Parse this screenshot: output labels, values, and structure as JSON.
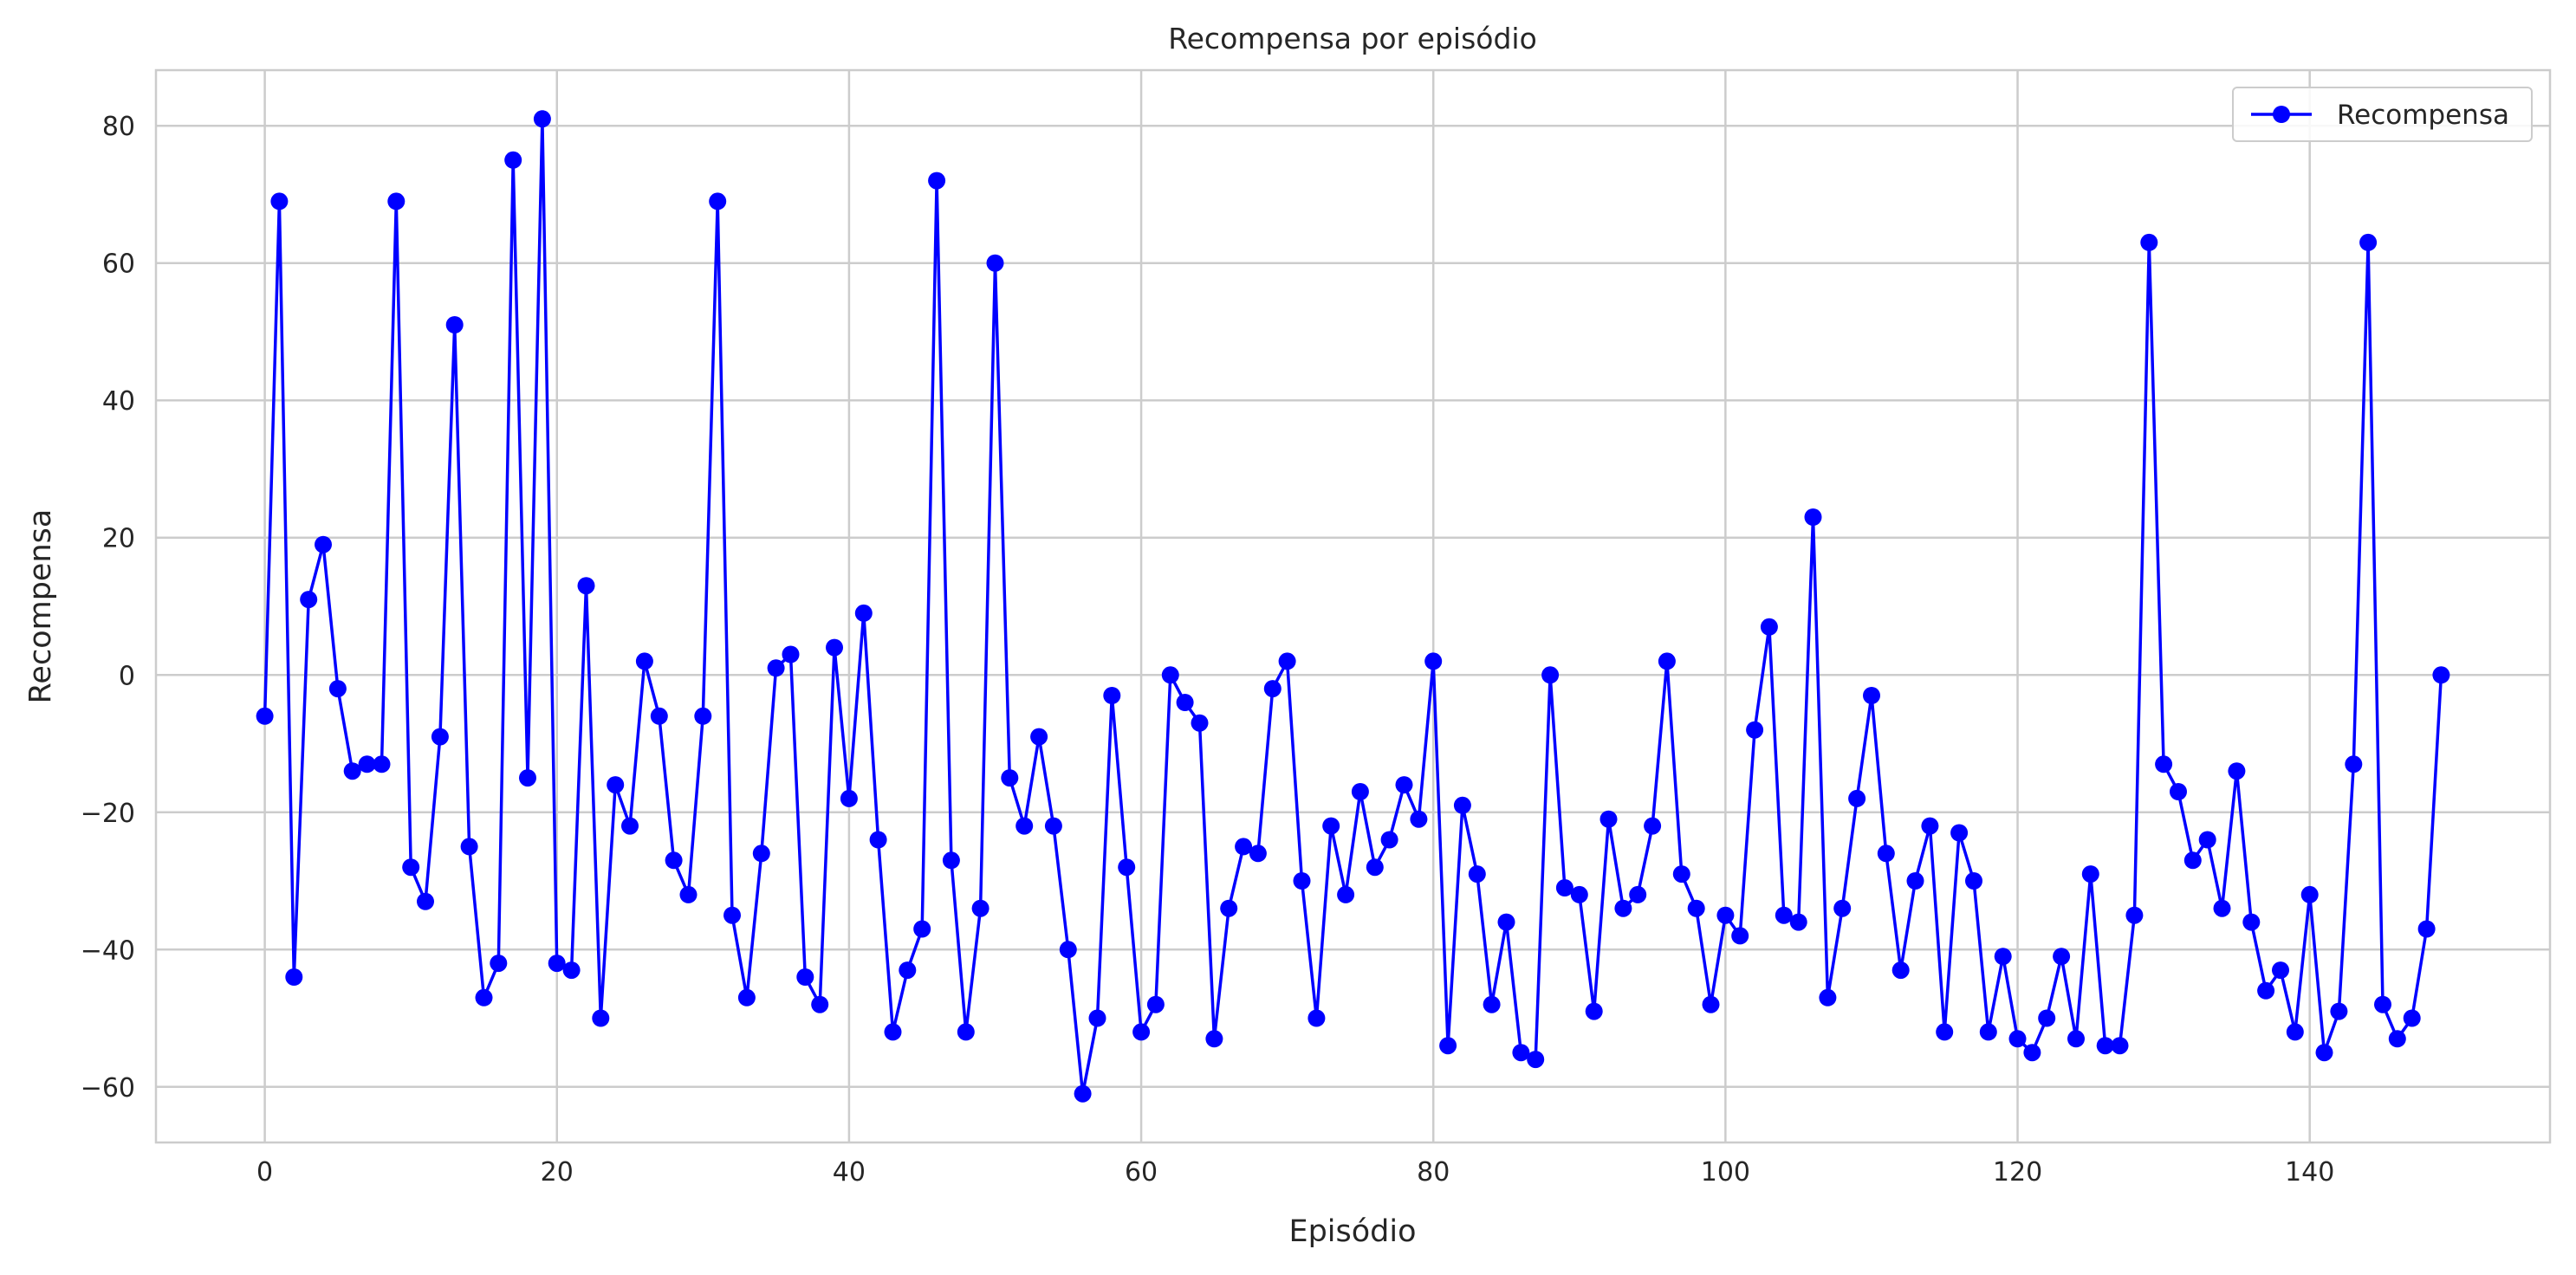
{
  "chart_data": {
    "type": "line",
    "title": "Recompensa por episódio",
    "xlabel": "Episódio",
    "ylabel": "Recompensa",
    "xlim": [
      -7.45,
      156.45
    ],
    "ylim": [
      -68.1,
      88.1
    ],
    "xticks": [
      0,
      20,
      40,
      60,
      80,
      100,
      120,
      140
    ],
    "xtick_labels": [
      "0",
      "20",
      "40",
      "60",
      "80",
      "100",
      "120",
      "140"
    ],
    "yticks": [
      -60,
      -40,
      -20,
      0,
      20,
      40,
      60,
      80
    ],
    "ytick_labels": [
      "−60",
      "−40",
      "−20",
      "0",
      "20",
      "40",
      "60",
      "80"
    ],
    "grid": true,
    "legend_position": "top-right",
    "series": [
      {
        "name": "Recompensa",
        "color": "#0000ff",
        "marker": "circle",
        "x": [
          0,
          1,
          2,
          3,
          4,
          5,
          6,
          7,
          8,
          9,
          10,
          11,
          12,
          13,
          14,
          15,
          16,
          17,
          18,
          19,
          20,
          21,
          22,
          23,
          24,
          25,
          26,
          27,
          28,
          29,
          30,
          31,
          32,
          33,
          34,
          35,
          36,
          37,
          38,
          39,
          40,
          41,
          42,
          43,
          44,
          45,
          46,
          47,
          48,
          49,
          50,
          51,
          52,
          53,
          54,
          55,
          56,
          57,
          58,
          59,
          60,
          61,
          62,
          63,
          64,
          65,
          66,
          67,
          68,
          69,
          70,
          71,
          72,
          73,
          74,
          75,
          76,
          77,
          78,
          79,
          80,
          81,
          82,
          83,
          84,
          85,
          86,
          87,
          88,
          89,
          90,
          91,
          92,
          93,
          94,
          95,
          96,
          97,
          98,
          99,
          100,
          101,
          102,
          103,
          104,
          105,
          106,
          107,
          108,
          109,
          110,
          111,
          112,
          113,
          114,
          115,
          116,
          117,
          118,
          119,
          120,
          121,
          122,
          123,
          124,
          125,
          126,
          127,
          128,
          129,
          130,
          131,
          132,
          133,
          134,
          135,
          136,
          137,
          138,
          139,
          140,
          141,
          142,
          143,
          144,
          145,
          146,
          147,
          148,
          149
        ],
        "y": [
          -6,
          69,
          -44,
          11,
          19,
          -2,
          -14,
          -13,
          -13,
          69,
          -28,
          -33,
          -9,
          51,
          -25,
          -47,
          -42,
          75,
          -15,
          81,
          -42,
          -43,
          13,
          -50,
          -16,
          -22,
          2,
          -6,
          -27,
          -32,
          -6,
          69,
          -35,
          -47,
          -26,
          1,
          3,
          -44,
          -48,
          4,
          -18,
          9,
          -24,
          -52,
          -43,
          -37,
          72,
          -27,
          -52,
          -34,
          60,
          -15,
          -22,
          -9,
          -22,
          -40,
          -61,
          -50,
          -3,
          -28,
          -52,
          -48,
          0,
          -4,
          -7,
          -53,
          -34,
          -25,
          -26,
          -2,
          2,
          -30,
          -50,
          -22,
          -32,
          -17,
          -28,
          -24,
          -16,
          -21,
          2,
          -54,
          -19,
          -29,
          -48,
          -36,
          -55,
          -56,
          0,
          -31,
          -32,
          -49,
          -21,
          -34,
          -32,
          -22,
          2,
          -29,
          -34,
          -48,
          -35,
          -38,
          -8,
          7,
          -35,
          -36,
          23,
          -47,
          -34,
          -18,
          -3,
          -26,
          -43,
          -30,
          -22,
          -52,
          -23,
          -30,
          -52,
          -41,
          -53,
          -55,
          -50,
          -41,
          -53,
          -29,
          -54,
          -54,
          -35,
          63,
          -13,
          -17,
          -27,
          -24,
          -34,
          -14,
          -36,
          -46,
          -43,
          -52,
          -32,
          -55,
          -49,
          -13,
          63,
          -48,
          -53,
          -50,
          -37,
          0
        ]
      }
    ]
  }
}
